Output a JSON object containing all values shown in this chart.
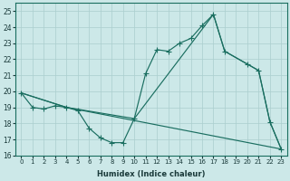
{
  "xlabel": "Humidex (Indice chaleur)",
  "xlim": [
    -0.5,
    23.5
  ],
  "ylim": [
    16,
    25.5
  ],
  "xticks": [
    0,
    1,
    2,
    3,
    4,
    5,
    6,
    7,
    8,
    9,
    10,
    11,
    12,
    13,
    14,
    15,
    16,
    17,
    18,
    19,
    20,
    21,
    22,
    23
  ],
  "yticks": [
    16,
    17,
    18,
    19,
    20,
    21,
    22,
    23,
    24,
    25
  ],
  "bg_color": "#cce8e8",
  "line_color": "#1a6e60",
  "grid_color": "#aacece",
  "line1_x": [
    0,
    1,
    2,
    3,
    4,
    5,
    6,
    7,
    8,
    9,
    10,
    11,
    12,
    13,
    14,
    15,
    16,
    17,
    18,
    20,
    21,
    22,
    23
  ],
  "line1_y": [
    19.9,
    19.0,
    18.9,
    19.1,
    19.0,
    18.8,
    17.7,
    17.1,
    16.8,
    16.8,
    18.3,
    21.1,
    22.6,
    22.5,
    23.0,
    23.3,
    24.1,
    24.8,
    22.5,
    21.7,
    21.3,
    18.1,
    16.4
  ],
  "line2_x": [
    0,
    4,
    10,
    17,
    18,
    20,
    21,
    22,
    23
  ],
  "line2_y": [
    19.9,
    19.0,
    18.3,
    24.8,
    22.5,
    21.7,
    21.3,
    18.1,
    16.4
  ],
  "line3_x": [
    0,
    4,
    23
  ],
  "line3_y": [
    19.9,
    19.0,
    16.4
  ]
}
